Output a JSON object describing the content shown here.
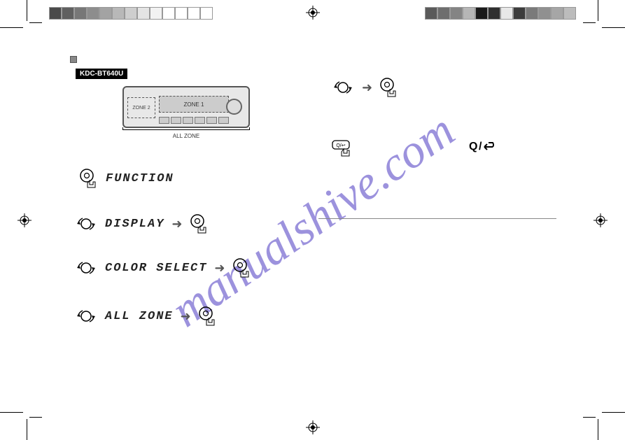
{
  "model_label": "KDC-BT640U",
  "diagram": {
    "zone2_label": "ZONE 2",
    "zone1_label": "ZONE 1",
    "all_zone_label": "ALL ZONE"
  },
  "steps": {
    "s1_text": "FUNCTION",
    "s2_text": "DISPLAY",
    "s3_text": "COLOR SELECT",
    "s4_text": "ALL ZONE"
  },
  "back_label": "/",
  "watermark": "manualshive.com",
  "colors": {
    "swatches_left": [
      "#4a4a4a",
      "#606060",
      "#777777",
      "#8d8d8d",
      "#a3a3a3",
      "#b8b8b8",
      "#cecece",
      "#e4e4e4",
      "#f2f2f2",
      "#ffffff",
      "#ffffff",
      "#ffffff",
      "#ffffff"
    ],
    "swatches_right": [
      "#5a5a5a",
      "#6e6e6e",
      "#848484",
      "#b6b6b6",
      "#1a1a1a",
      "#2f2f2f",
      "#e8e8e8",
      "#3c3c3c",
      "#7a7a7a",
      "#909090",
      "#a6a6a6",
      "#bcbcbc"
    ]
  }
}
